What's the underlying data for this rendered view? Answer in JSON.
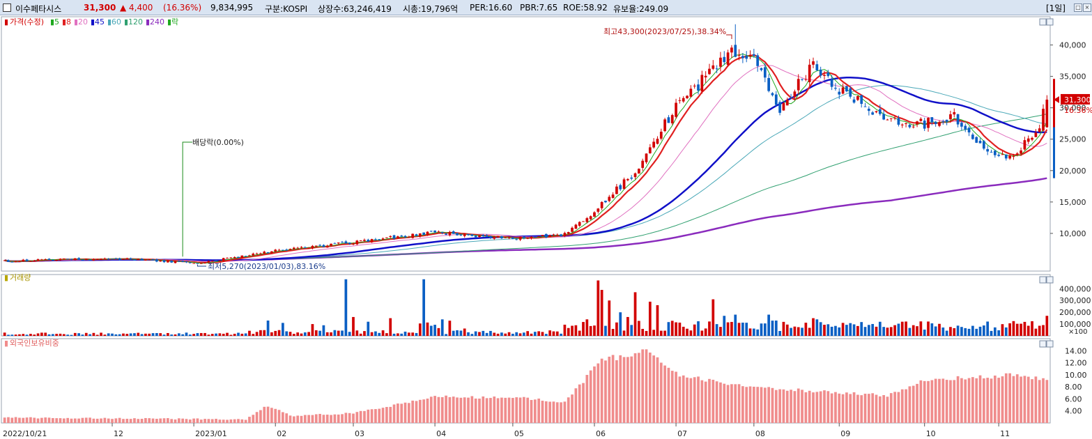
{
  "header": {
    "stock_name": "이수페타시스",
    "price": "31,300",
    "change": "▲ 4,400",
    "change_pct": "(16.36%)",
    "volume": "9,834,995",
    "market": "구분:KOSPI",
    "shares": "상장수:63,246,419",
    "market_cap": "시총:19,796억",
    "per": "PER:16.60",
    "pbr": "PBR:7.65",
    "roe": "ROE:58.92",
    "float_rate": "유보율:249.09",
    "period": "[1일]"
  },
  "colors": {
    "up": "#d20000",
    "down": "#0a5fc4",
    "ma5": "#1fa81f",
    "ma8": "#e02020",
    "ma20": "#e070c0",
    "ma45": "#1010c8",
    "ma60": "#4aa8b8",
    "ma120": "#30a070",
    "ma240": "#8a2bbd",
    "foreign": "#f08c8c"
  },
  "price_panel": {
    "legend": [
      {
        "label": "가격(수정)",
        "color": "#d20000"
      },
      {
        "label": "5",
        "color": "#1fa81f"
      },
      {
        "label": "8",
        "color": "#e02020"
      },
      {
        "label": "20",
        "color": "#e070c0"
      },
      {
        "label": "45",
        "color": "#1010c8"
      },
      {
        "label": "60",
        "color": "#4aa8b8"
      },
      {
        "label": "120",
        "color": "#30a070"
      },
      {
        "label": "240",
        "color": "#8a2bbd"
      },
      {
        "label": "락",
        "color": "#1fa81f"
      }
    ],
    "annotations": {
      "high": "최고43,300(2023/07/25),38.34%",
      "low": "최저5,270(2023/01/03),83.16%",
      "dividend": "배당락(0.00%)"
    },
    "price_tag": "31,300",
    "pct_tag": "16.36%"
  },
  "volume_panel": {
    "title": "거래량",
    "unit": "×100"
  },
  "foreign_panel": {
    "title": "외국인보유비중"
  },
  "chart_data": [
    {
      "type": "candlestick",
      "title": "",
      "x_ticks": [
        "2022/10/21",
        "12",
        "2023/01",
        "02",
        "03",
        "04",
        "05",
        "06",
        "07",
        "08",
        "09",
        "10",
        "11"
      ],
      "y_ticks": [
        10000,
        15000,
        20000,
        25000,
        30000,
        35000,
        40000
      ],
      "ylim": [
        4000,
        44500
      ],
      "anchors": [
        {
          "date": "2022/10/21",
          "close": 5600
        },
        {
          "date": "2022/12/01",
          "close": 6000
        },
        {
          "date": "2023/01/03",
          "close": 5300
        },
        {
          "date": "2023/02/01",
          "close": 7200
        },
        {
          "date": "2023/03/02",
          "close": 8600
        },
        {
          "date": "2023/04/03",
          "close": 10200
        },
        {
          "date": "2023/05/02",
          "close": 9100
        },
        {
          "date": "2023/05/22",
          "close": 9800
        },
        {
          "date": "2023/06/01",
          "close": 13500
        },
        {
          "date": "2023/06/20",
          "close": 21000
        },
        {
          "date": "2023/07/03",
          "close": 30500
        },
        {
          "date": "2023/07/25",
          "close": 39000
        },
        {
          "date": "2023/08/01",
          "close": 38500
        },
        {
          "date": "2023/08/10",
          "close": 30000
        },
        {
          "date": "2023/08/23",
          "close": 37000
        },
        {
          "date": "2023/09/01",
          "close": 33000
        },
        {
          "date": "2023/09/20",
          "close": 28000
        },
        {
          "date": "2023/10/04",
          "close": 27500
        },
        {
          "date": "2023/10/16",
          "close": 28500
        },
        {
          "date": "2023/10/30",
          "close": 22500
        },
        {
          "date": "2023/11/06",
          "close": 22000
        },
        {
          "date": "2023/11/16",
          "close": 26900
        },
        {
          "date": "2023/11/20",
          "close": 31300
        }
      ],
      "period_high": {
        "date": "2023/07/25",
        "value": 43300
      },
      "period_low": {
        "date": "2023/01/03",
        "value": 5270
      },
      "last_close": 31300
    },
    {
      "type": "bar",
      "title": "",
      "y_ticks": [
        100000,
        200000,
        300000,
        400000
      ],
      "ylim": [
        0,
        520000
      ],
      "note": "volume per day, units of 100 shares"
    },
    {
      "type": "bar",
      "title": "",
      "y_ticks": [
        4,
        6,
        8,
        10,
        12,
        14
      ],
      "ylim": [
        2,
        16
      ],
      "anchors": [
        {
          "date": "2022/10/21",
          "value": 2.9
        },
        {
          "date": "2023/01/20",
          "value": 2.6
        },
        {
          "date": "2023/01/30",
          "value": 4.9
        },
        {
          "date": "2023/02/07",
          "value": 3.2
        },
        {
          "date": "2023/03/02",
          "value": 3.6
        },
        {
          "date": "2023/04/03",
          "value": 6.3
        },
        {
          "date": "2023/05/02",
          "value": 6.3
        },
        {
          "date": "2023/05/22",
          "value": 5.4
        },
        {
          "date": "2023/06/05",
          "value": 12.5
        },
        {
          "date": "2023/06/21",
          "value": 13.8
        },
        {
          "date": "2023/07/03",
          "value": 10.2
        },
        {
          "date": "2023/07/25",
          "value": 8.2
        },
        {
          "date": "2023/09/01",
          "value": 7.0
        },
        {
          "date": "2023/09/20",
          "value": 6.6
        },
        {
          "date": "2023/10/04",
          "value": 9.2
        },
        {
          "date": "2023/11/06",
          "value": 9.9
        },
        {
          "date": "2023/11/20",
          "value": 9.3
        }
      ]
    }
  ]
}
